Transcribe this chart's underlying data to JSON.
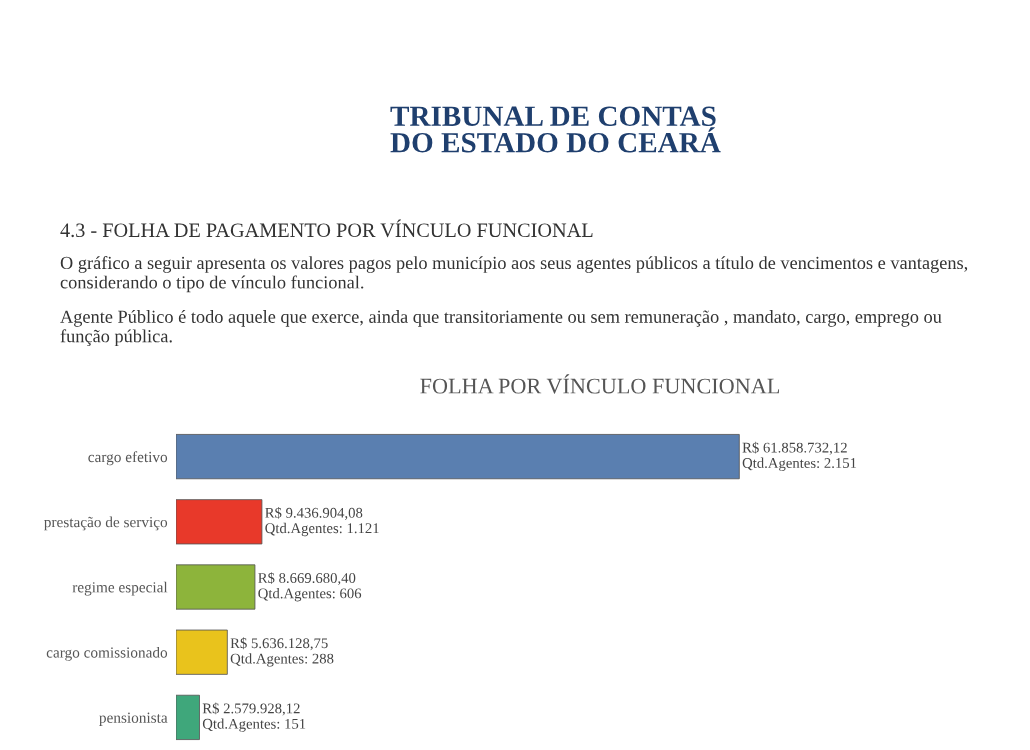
{
  "chart_data": {
    "type": "bar",
    "orientation": "horizontal",
    "title": "FOLHA POR VÍNCULO FUNCIONAL",
    "categories": [
      "cargo efetivo",
      "prestação de serviço",
      "regime especial",
      "cargo comissionado",
      "pensionista"
    ],
    "values": [
      61858732.12,
      9436904.08,
      8669680.4,
      5636128.75,
      2579928.12
    ],
    "colors": [
      "#5a7fb0",
      "#e8392a",
      "#8db43b",
      "#e9c31c",
      "#3fa77b"
    ],
    "value_labels": [
      "R$ 61.858.732,12\nQtd.Agentes: 2.151",
      "R$ 9.436.904,08\nQtd.Agentes: 1.121",
      "R$ 8.669.680,40\nQtd.Agentes: 606",
      "R$ 5.636.128,75\nQtd.Agentes: 288",
      "R$ 2.579.928,12\nQtd.Agentes: 151"
    ],
    "annotations": [
      "TRIBUNAL DE CONTAS\nDO ESTADO DO CEARÁ",
      "4.3 - FOLHA DE PAGAMENTO POR VÍNCULO FUNCIONAL",
      "O gráfico a seguir apresenta os valores pagos pelo município aos seus agentes públicos a título de vencimentos e vantagens, considerando o tipo de vínculo funcional.",
      "Agente Público é todo aquele que exerce, ainda que transitoriamente ou sem remuneração , mandato, cargo, emprego ou função pública."
    ],
    "grid": false,
    "legend": false
  }
}
